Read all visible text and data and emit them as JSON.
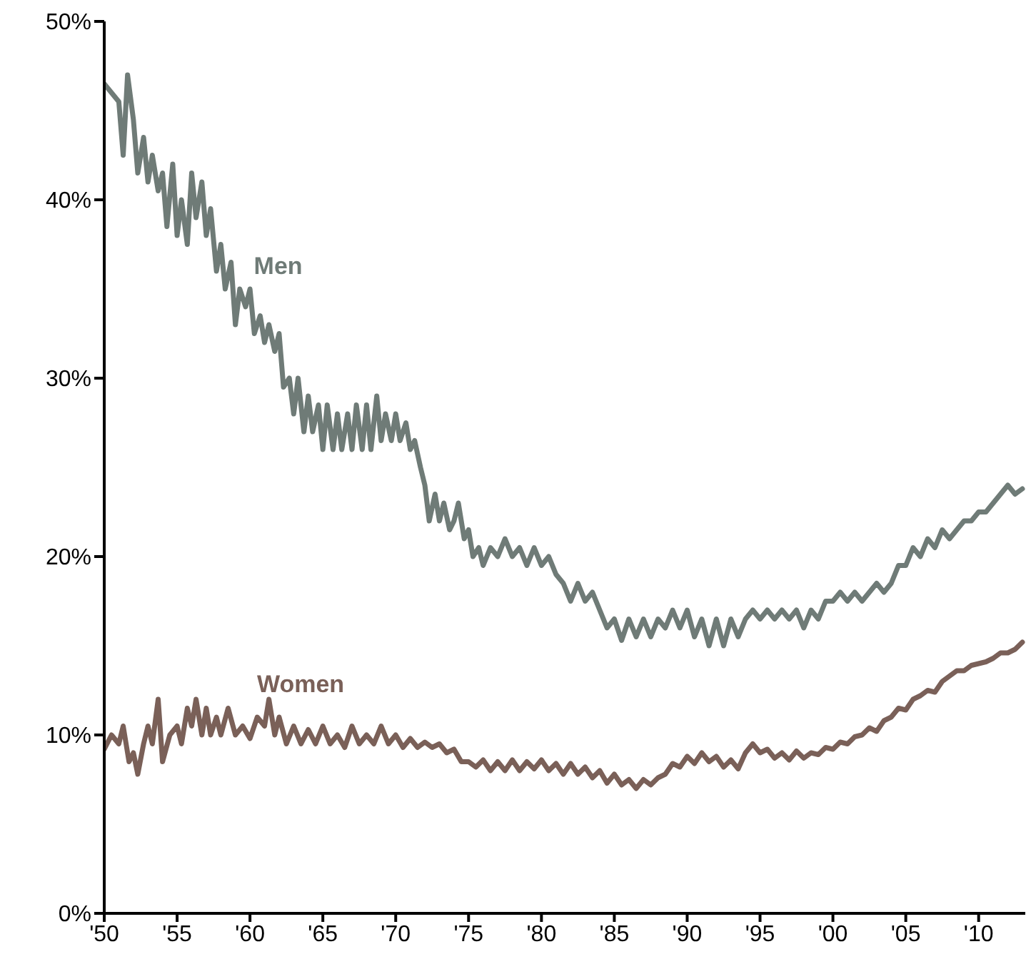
{
  "chart_data": {
    "type": "line",
    "xlim": [
      1950,
      2013.2
    ],
    "ylim": [
      0,
      50
    ],
    "xticks": [
      {
        "value": 1950,
        "label": "'50"
      },
      {
        "value": 1955,
        "label": "'55"
      },
      {
        "value": 1960,
        "label": "'60"
      },
      {
        "value": 1965,
        "label": "'65"
      },
      {
        "value": 1970,
        "label": "'70"
      },
      {
        "value": 1975,
        "label": "'75"
      },
      {
        "value": 1980,
        "label": "'80"
      },
      {
        "value": 1985,
        "label": "'85"
      },
      {
        "value": 1990,
        "label": "'90"
      },
      {
        "value": 1995,
        "label": "'95"
      },
      {
        "value": 2000,
        "label": "'00"
      },
      {
        "value": 2005,
        "label": "'05"
      },
      {
        "value": 2010,
        "label": "'10"
      }
    ],
    "yticks": [
      {
        "value": 0,
        "label": "0%"
      },
      {
        "value": 10,
        "label": "10%"
      },
      {
        "value": 20,
        "label": "20%"
      },
      {
        "value": 30,
        "label": "30%"
      },
      {
        "value": 40,
        "label": "40%"
      },
      {
        "value": 50,
        "label": "50%"
      }
    ],
    "grid": false,
    "marker": "none",
    "line_style": "solid",
    "series": [
      {
        "name": "Men",
        "color": "#6f7b77",
        "x": [
          1950,
          1950.5,
          1951,
          1951.3,
          1951.6,
          1952,
          1952.3,
          1952.7,
          1953,
          1953.3,
          1953.7,
          1954,
          1954.3,
          1954.7,
          1955,
          1955.3,
          1955.7,
          1956,
          1956.3,
          1956.7,
          1957,
          1957.3,
          1957.7,
          1958,
          1958.3,
          1958.7,
          1959,
          1959.3,
          1959.7,
          1960,
          1960.3,
          1960.7,
          1961,
          1961.3,
          1961.7,
          1962,
          1962.3,
          1962.7,
          1963,
          1963.3,
          1963.7,
          1964,
          1964.3,
          1964.7,
          1965,
          1965.3,
          1965.7,
          1966,
          1966.3,
          1966.7,
          1967,
          1967.3,
          1967.7,
          1968,
          1968.3,
          1968.7,
          1969,
          1969.3,
          1969.7,
          1970,
          1970.3,
          1970.7,
          1971,
          1971.3,
          1971.7,
          1972,
          1972.3,
          1972.7,
          1973,
          1973.3,
          1973.7,
          1974,
          1974.3,
          1974.7,
          1975,
          1975.3,
          1975.7,
          1976,
          1976.5,
          1977,
          1977.5,
          1978,
          1978.5,
          1979,
          1979.5,
          1980,
          1980.5,
          1981,
          1981.5,
          1982,
          1982.5,
          1983,
          1983.5,
          1984,
          1984.5,
          1985,
          1985.5,
          1986,
          1986.5,
          1987,
          1987.5,
          1988,
          1988.5,
          1989,
          1989.5,
          1990,
          1990.5,
          1991,
          1991.5,
          1992,
          1992.5,
          1993,
          1993.5,
          1994,
          1994.5,
          1995,
          1995.5,
          1996,
          1996.5,
          1997,
          1997.5,
          1998,
          1998.5,
          1999,
          1999.5,
          2000,
          2000.5,
          2001,
          2001.5,
          2002,
          2002.5,
          2003,
          2003.5,
          2004,
          2004.5,
          2005,
          2005.5,
          2006,
          2006.5,
          2007,
          2007.5,
          2008,
          2008.5,
          2009,
          2009.5,
          2010,
          2010.5,
          2011,
          2011.5,
          2012,
          2012.5,
          2013
        ],
        "values": [
          46.5,
          46,
          45.5,
          42.5,
          47,
          44.5,
          41.5,
          43.5,
          41,
          42.5,
          40.5,
          41.5,
          38.5,
          42,
          38,
          40,
          37.5,
          41.5,
          39,
          41,
          38,
          39.5,
          36,
          37.5,
          35,
          36.5,
          33,
          35,
          34,
          35,
          32.5,
          33.5,
          32,
          33,
          31.5,
          32.5,
          29.5,
          30,
          28,
          30,
          27,
          29,
          27,
          28.5,
          26,
          28.5,
          26,
          28,
          26,
          28,
          26,
          28.5,
          26,
          28.5,
          26,
          29,
          26.5,
          28,
          26.5,
          28,
          26.5,
          27.5,
          26,
          26.5,
          25,
          24,
          22,
          23.5,
          22,
          23,
          21.5,
          22,
          23,
          21,
          21.5,
          20,
          20.5,
          19.5,
          20.5,
          20,
          21,
          20,
          20.5,
          19.5,
          20.5,
          19.5,
          20,
          19,
          18.5,
          17.5,
          18.5,
          17.5,
          18,
          17,
          16,
          16.5,
          15.3,
          16.5,
          15.5,
          16.5,
          15.5,
          16.5,
          16,
          17,
          16,
          17,
          15.5,
          16.5,
          15,
          16.5,
          15,
          16.5,
          15.5,
          16.5,
          17,
          16.5,
          17,
          16.5,
          17,
          16.5,
          17,
          16,
          17,
          16.5,
          17.5,
          17.5,
          18,
          17.5,
          18,
          17.5,
          18,
          18.5,
          18,
          18.5,
          19.5,
          19.5,
          20.5,
          20,
          21,
          20.5,
          21.5,
          21,
          21.5,
          22,
          22,
          22.5,
          22.5,
          23,
          23.5,
          24,
          23.5,
          23.8
        ]
      },
      {
        "name": "Women",
        "color": "#7a6058",
        "x": [
          1950,
          1950.5,
          1951,
          1951.3,
          1951.7,
          1952,
          1952.3,
          1952.7,
          1953,
          1953.3,
          1953.7,
          1954,
          1954.5,
          1955,
          1955.3,
          1955.7,
          1956,
          1956.3,
          1956.7,
          1957,
          1957.3,
          1957.7,
          1958,
          1958.5,
          1959,
          1959.5,
          1960,
          1960.5,
          1961,
          1961.3,
          1961.7,
          1962,
          1962.5,
          1963,
          1963.5,
          1964,
          1964.5,
          1965,
          1965.5,
          1966,
          1966.5,
          1967,
          1967.5,
          1968,
          1968.5,
          1969,
          1969.5,
          1970,
          1970.5,
          1971,
          1971.5,
          1972,
          1972.5,
          1973,
          1973.5,
          1974,
          1974.5,
          1975,
          1975.5,
          1976,
          1976.5,
          1977,
          1977.5,
          1978,
          1978.5,
          1979,
          1979.5,
          1980,
          1980.5,
          1981,
          1981.5,
          1982,
          1982.5,
          1983,
          1983.5,
          1984,
          1984.5,
          1985,
          1985.5,
          1986,
          1986.5,
          1987,
          1987.5,
          1988,
          1988.5,
          1989,
          1989.5,
          1990,
          1990.5,
          1991,
          1991.5,
          1992,
          1992.5,
          1993,
          1993.5,
          1994,
          1994.5,
          1995,
          1995.5,
          1996,
          1996.5,
          1997,
          1997.5,
          1998,
          1998.5,
          1999,
          1999.5,
          2000,
          2000.5,
          2001,
          2001.5,
          2002,
          2002.5,
          2003,
          2003.5,
          2004,
          2004.5,
          2005,
          2005.5,
          2006,
          2006.5,
          2007,
          2007.5,
          2008,
          2008.5,
          2009,
          2009.5,
          2010,
          2010.5,
          2011,
          2011.5,
          2012,
          2012.5,
          2013
        ],
        "values": [
          9.2,
          10,
          9.5,
          10.5,
          8.5,
          9,
          7.8,
          9.5,
          10.5,
          9.5,
          12,
          8.5,
          10,
          10.5,
          9.5,
          11.5,
          10.5,
          12,
          10,
          11.5,
          10,
          11,
          10,
          11.5,
          10,
          10.5,
          9.8,
          11,
          10.5,
          12,
          10,
          11,
          9.5,
          10.5,
          9.5,
          10.3,
          9.5,
          10.5,
          9.5,
          10,
          9.3,
          10.5,
          9.5,
          10,
          9.5,
          10.5,
          9.5,
          10,
          9.3,
          9.8,
          9.3,
          9.6,
          9.3,
          9.5,
          9,
          9.2,
          8.5,
          8.5,
          8.2,
          8.6,
          8,
          8.5,
          8,
          8.6,
          8,
          8.5,
          8.1,
          8.6,
          8,
          8.4,
          7.8,
          8.4,
          7.8,
          8.2,
          7.6,
          8,
          7.3,
          7.8,
          7.2,
          7.5,
          7,
          7.5,
          7.2,
          7.6,
          7.8,
          8.4,
          8.2,
          8.8,
          8.4,
          9,
          8.5,
          8.8,
          8.2,
          8.6,
          8.1,
          9,
          9.5,
          9,
          9.2,
          8.7,
          9,
          8.6,
          9.1,
          8.7,
          9,
          8.9,
          9.3,
          9.2,
          9.6,
          9.5,
          9.9,
          10,
          10.4,
          10.2,
          10.8,
          11,
          11.5,
          11.4,
          12,
          12.2,
          12.5,
          12.4,
          13,
          13.3,
          13.6,
          13.6,
          13.9,
          14,
          14.1,
          14.3,
          14.6,
          14.6,
          14.8,
          15.2
        ]
      }
    ]
  }
}
